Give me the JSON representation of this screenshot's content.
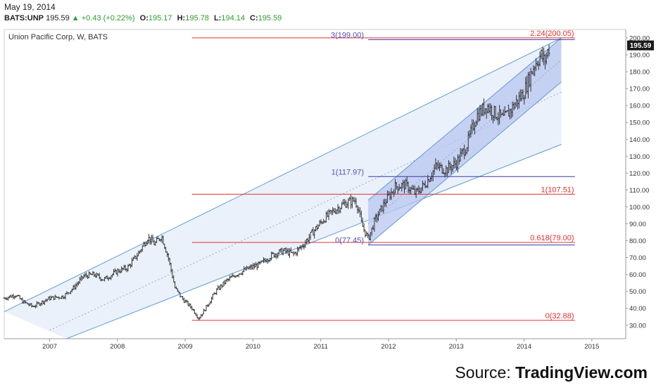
{
  "header": {
    "date": "May 19, 2014",
    "symbol": "BATS:UNP",
    "last": "195.59",
    "change_arrow": "▲",
    "change": "+0.43 (+0.22%)",
    "o_label": "O:",
    "o_value": "195.17",
    "h_label": "H:",
    "h_value": "195.78",
    "l_label": "L:",
    "l_value": "194.14",
    "c_label": "C:",
    "c_value": "195.59"
  },
  "source": {
    "prefix": "Source:",
    "brand": "TradingView.com"
  },
  "colors": {
    "candle": "#333333",
    "fib_red": "#e03030",
    "fib_blue": "#3a3aa8",
    "channel_line": "#5b9bd5",
    "channel_fill": "#dde8f8",
    "inner_fill": "#b8c6f0",
    "price_tag_bg": "#1a1a1a"
  },
  "chart_data": {
    "type": "ohlc",
    "title": "Union Pacific Corp, W, BATS",
    "xlabel": "",
    "ylabel": "",
    "ylim": [
      22,
      205
    ],
    "xlim": [
      2006.33,
      2015.5
    ],
    "x_ticks": [
      "2007",
      "2008",
      "2009",
      "2010",
      "2011",
      "2012",
      "2013",
      "2014",
      "2015"
    ],
    "y_ticks": [
      30,
      40,
      50,
      60,
      70,
      80,
      90,
      100,
      110,
      120,
      130,
      140,
      150,
      160,
      170,
      180,
      190,
      200
    ],
    "y_tick_labels": [
      "30.00",
      "40.00",
      "50.00",
      "60.00",
      "70.00",
      "80.00",
      "90.00",
      "100.00",
      "110.00",
      "120.00",
      "130.00",
      "140.00",
      "150.00",
      "160.00",
      "170.00",
      "180.00",
      "190.00",
      "200.00"
    ],
    "last_price": 195.59,
    "last_price_label": "195.59",
    "price_path": [
      [
        2006.33,
        46
      ],
      [
        2006.5,
        48
      ],
      [
        2006.6,
        44
      ],
      [
        2006.75,
        41
      ],
      [
        2006.9,
        44
      ],
      [
        2007.0,
        46
      ],
      [
        2007.2,
        47
      ],
      [
        2007.35,
        52
      ],
      [
        2007.5,
        59
      ],
      [
        2007.65,
        60
      ],
      [
        2007.8,
        57
      ],
      [
        2008.0,
        62
      ],
      [
        2008.15,
        64
      ],
      [
        2008.3,
        72
      ],
      [
        2008.45,
        82
      ],
      [
        2008.55,
        78
      ],
      [
        2008.65,
        83
      ],
      [
        2008.75,
        70
      ],
      [
        2008.85,
        52
      ],
      [
        2008.95,
        46
      ],
      [
        2009.1,
        40
      ],
      [
        2009.2,
        34
      ],
      [
        2009.3,
        40
      ],
      [
        2009.45,
        50
      ],
      [
        2009.6,
        56
      ],
      [
        2009.75,
        60
      ],
      [
        2009.9,
        63
      ],
      [
        2010.1,
        66
      ],
      [
        2010.3,
        72
      ],
      [
        2010.45,
        74
      ],
      [
        2010.6,
        72
      ],
      [
        2010.75,
        78
      ],
      [
        2010.9,
        86
      ],
      [
        2011.05,
        93
      ],
      [
        2011.2,
        98
      ],
      [
        2011.35,
        102
      ],
      [
        2011.5,
        104
      ],
      [
        2011.55,
        100
      ],
      [
        2011.6,
        90
      ],
      [
        2011.7,
        81
      ],
      [
        2011.8,
        92
      ],
      [
        2011.95,
        103
      ],
      [
        2012.1,
        112
      ],
      [
        2012.25,
        113
      ],
      [
        2012.4,
        108
      ],
      [
        2012.55,
        114
      ],
      [
        2012.7,
        124
      ],
      [
        2012.85,
        122
      ],
      [
        2013.0,
        126
      ],
      [
        2013.15,
        136
      ],
      [
        2013.3,
        154
      ],
      [
        2013.45,
        160
      ],
      [
        2013.55,
        156
      ],
      [
        2013.7,
        152
      ],
      [
        2013.85,
        160
      ],
      [
        2014.0,
        168
      ],
      [
        2014.15,
        184
      ],
      [
        2014.25,
        190
      ],
      [
        2014.3,
        186
      ],
      [
        2014.38,
        195.59
      ]
    ],
    "fib_levels_red": [
      {
        "label": "2.24(200.05)",
        "value": 200.05
      },
      {
        "label": "1(107.51)",
        "value": 107.51
      },
      {
        "label": "0.618(79.00)",
        "value": 79.0
      },
      {
        "label": "0(32.88)",
        "value": 32.88
      }
    ],
    "fib_levels_blue": [
      {
        "label": "3(199.00)",
        "value": 199.0
      },
      {
        "label": "1(117.97)",
        "value": 117.97
      },
      {
        "label": "0(77.45)",
        "value": 77.45
      }
    ],
    "channels": [
      {
        "name": "outer",
        "line1": [
          [
            2006.33,
            38
          ],
          [
            2014.55,
            200
          ]
        ],
        "line2": [
          [
            2007.25,
            22
          ],
          [
            2014.55,
            137
          ]
        ],
        "mid": [
          [
            2007.0,
            27
          ],
          [
            2014.55,
            168
          ]
        ]
      },
      {
        "name": "inner",
        "line1": [
          [
            2011.7,
            104
          ],
          [
            2014.55,
            200
          ]
        ],
        "line2": [
          [
            2011.7,
            77.45
          ],
          [
            2014.55,
            174
          ]
        ],
        "mid": [
          [
            2011.7,
            90
          ],
          [
            2014.55,
            187
          ]
        ]
      }
    ]
  }
}
